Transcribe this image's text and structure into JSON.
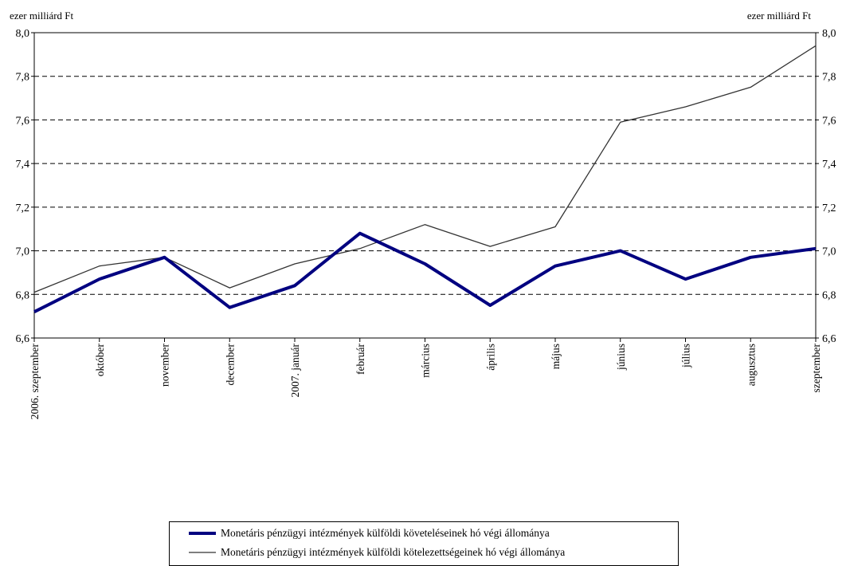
{
  "chart_data": {
    "type": "line",
    "ylabel_left": "ezer milliárd Ft",
    "ylabel_right": "ezer milliárd Ft",
    "ylim": [
      6.6,
      8.0
    ],
    "yticks": [
      6.6,
      6.8,
      7.0,
      7.2,
      7.4,
      7.6,
      7.8,
      8.0
    ],
    "ytick_labels": [
      "6,6",
      "6,8",
      "7,0",
      "7,2",
      "7,4",
      "7,6",
      "7,8",
      "8,0"
    ],
    "grid": "horizontal dashed",
    "legend_position": "bottom",
    "categories": [
      "2006. szeptember",
      "október",
      "november",
      "december",
      "2007. január",
      "február",
      "március",
      "április",
      "május",
      "június",
      "július",
      "augusztus",
      "szeptember"
    ],
    "series": [
      {
        "name": "Monetáris pénzügyi intézmények külföldi követeléseinek hó végi állománya",
        "color": "#000080",
        "line": "thick",
        "values": [
          6.72,
          6.87,
          6.97,
          6.74,
          6.84,
          7.08,
          6.94,
          6.75,
          6.93,
          7.0,
          6.87,
          6.97,
          7.01
        ]
      },
      {
        "name": "Monetáris pénzügyi intézmények külföldi kötelezettségeinek hó végi állománya",
        "color": "#333333",
        "line": "thin",
        "values": [
          6.81,
          6.93,
          6.97,
          6.83,
          6.94,
          7.01,
          7.12,
          7.02,
          7.11,
          7.59,
          7.66,
          7.75,
          7.94
        ]
      }
    ]
  }
}
